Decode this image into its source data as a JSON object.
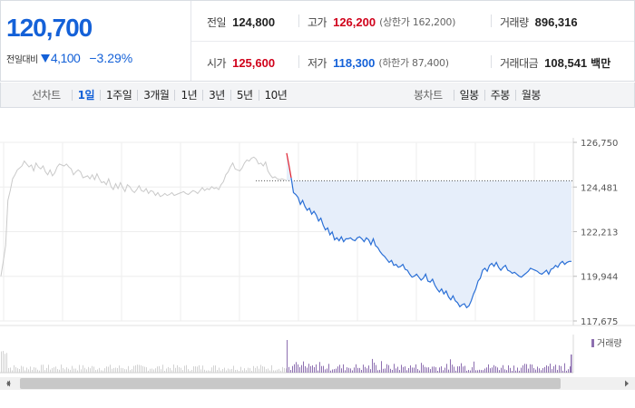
{
  "quote": {
    "current_price": "120,700",
    "change_label": "전일대비",
    "change_amount": "4,100",
    "change_percent": "−3.29%",
    "prev_close_label": "전일",
    "prev_close": "124,800",
    "high_label": "고가",
    "high": "126,200",
    "upper_limit_label": "(상한가 162,200)",
    "volume_label": "거래량",
    "volume": "896,316",
    "open_label": "시가",
    "open": "125,600",
    "low_label": "저가",
    "low": "118,300",
    "lower_limit_label": "(하한가 87,400)",
    "amount_label": "거래대금",
    "amount": "108,541",
    "amount_unit": "백만",
    "colors": {
      "up": "#d0021b",
      "down": "#1461d8"
    }
  },
  "tabs": {
    "line_title": "선차트",
    "line_periods": [
      "1일",
      "1주일",
      "3개월",
      "1년",
      "3년",
      "5년",
      "10년"
    ],
    "active_period": "1일",
    "candle_title": "봉차트",
    "candle_periods": [
      "일봉",
      "주봉",
      "월봉"
    ]
  },
  "chart_data": {
    "type": "line",
    "ylim": [
      117675,
      126750
    ],
    "y_ticks": [
      "126,750",
      "124,481",
      "122,213",
      "119,944",
      "117,675"
    ],
    "y_tick_values": [
      126750,
      124481,
      122213,
      119944,
      117675
    ],
    "reference_line": 124800,
    "legend_volume": "거래량",
    "series": [
      {
        "values": [
          119950,
          120700,
          121500,
          123800,
          124300,
          124900,
          125100,
          125350,
          125450,
          125550,
          125800,
          125650,
          125500,
          125600,
          125300,
          125700,
          125500,
          125400,
          125550,
          125250,
          125100,
          125350,
          125050,
          125200,
          125500,
          125650,
          125600,
          125550,
          125650,
          125500,
          125400,
          125100,
          125250,
          125350,
          125250,
          124950,
          125000,
          125050,
          124900,
          125100,
          124850,
          125150,
          124900,
          124700,
          124750,
          124600,
          124900,
          124500,
          124350,
          124650,
          124400,
          124700,
          124450,
          124250,
          124600,
          124500,
          124300,
          124200,
          124350,
          124550,
          124300,
          124250,
          124400,
          124150,
          124300,
          124250,
          124050,
          124200,
          124000,
          124050,
          124150,
          124050,
          124100,
          124200,
          124050,
          124100,
          124150,
          124200,
          124250,
          124150,
          124100,
          124200,
          124300,
          124250,
          124150,
          124300,
          124450,
          124300,
          124400,
          124350,
          124500,
          124400,
          124450,
          124350,
          124600,
          124750,
          125100,
          125250,
          125500,
          125700,
          125400,
          125350,
          125300,
          125450,
          125700,
          125850,
          125800,
          125950,
          126000,
          125900,
          125650,
          125700,
          125550,
          125750,
          125300,
          125100,
          124950,
          125000,
          124900,
          124850,
          124900,
          124850,
          124800
        ]
      },
      {
        "values": [
          126200,
          125600,
          124950,
          124200,
          124100,
          123950,
          123600,
          123800,
          123500,
          123300,
          123400,
          123100,
          123250,
          123050,
          122750,
          122900,
          122550,
          122300,
          122400,
          122050,
          122200,
          121800,
          121900,
          121750,
          121950,
          121700,
          121850,
          121850,
          121900,
          121800,
          121750,
          121900,
          121950,
          121850,
          121700,
          121900,
          121800,
          121550,
          121850,
          121500,
          121400,
          121200,
          121050,
          120950,
          120800,
          120650,
          120750,
          120500,
          120550,
          120400,
          120450,
          120550,
          120300,
          120250,
          120050,
          119900,
          119950,
          120050,
          119900,
          119750,
          119850,
          120050,
          119700,
          119650,
          119800,
          119500,
          119300,
          119150,
          119300,
          119050,
          119200,
          118900,
          118750,
          118950,
          118700,
          118600,
          118400,
          118500,
          118550,
          118350,
          118450,
          118700,
          119050,
          119300,
          119700,
          119850,
          120250,
          120350,
          120200,
          120500,
          120600,
          120450,
          120650,
          120400,
          120250,
          120400,
          120500,
          120250,
          120200,
          120100,
          120150,
          120050,
          119950,
          119900,
          120000,
          120100,
          120200,
          120350,
          120300,
          120250,
          120200,
          120100,
          120050,
          120150,
          120250,
          120050,
          120300,
          120350,
          120500,
          120400,
          120600,
          120700,
          120550,
          120650,
          120700,
          120700
        ]
      }
    ]
  }
}
